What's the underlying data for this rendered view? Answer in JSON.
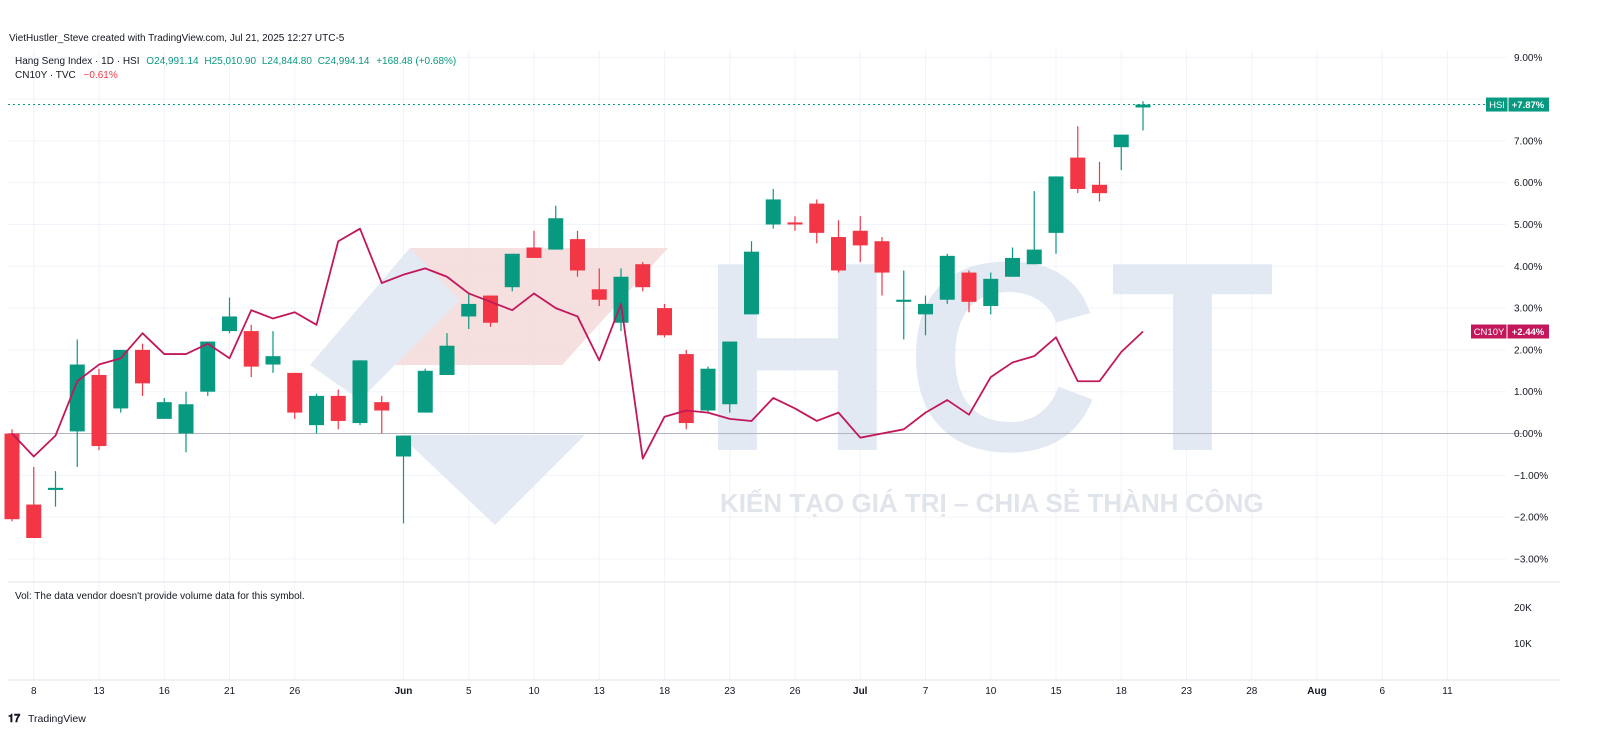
{
  "header": {
    "attribution": "VietHustler_Steve created with TradingView.com, Jul 21, 2025 12:27 UTC-5"
  },
  "legend": {
    "hsi_name": "Hang Seng Index · 1D · HSI",
    "hsi_o": "O24,991.14",
    "hsi_h": "H25,010.90",
    "hsi_l": "L24,844.80",
    "hsi_c": "C24,994.14",
    "hsi_change": "+168.48 (+0.68%)",
    "cn10y_name": "CN10Y · TVC",
    "cn10y_change": "−0.61%"
  },
  "watermark": {
    "letters": "HCT",
    "slogan": "KIẾN TẠO GIÁ TRỊ – CHIA SẺ THÀNH CÔNG"
  },
  "volume_pane": {
    "message": "Vol: The data vendor doesn't provide volume data for this symbol.",
    "y_ticks": [
      "20K",
      "10K"
    ]
  },
  "footer": {
    "brand": "TradingView"
  },
  "colors": {
    "up": "#089981",
    "down": "#f23645",
    "cn10y_line": "#c2185b",
    "grid": "#f0f3fa",
    "watermark": "#dbe4ef",
    "watermark_red": "#f3d6d6"
  },
  "chart_data": {
    "type": "candlestick",
    "y_unit": "percent change",
    "ylim": [
      -3.5,
      9.2
    ],
    "y_ticks": [
      9,
      7,
      6,
      5,
      4,
      3,
      2,
      1,
      0,
      -1,
      -2,
      -3
    ],
    "y_tick_labels": [
      "9.00%",
      "7.00%",
      "6.00%",
      "5.00%",
      "4.00%",
      "3.00%",
      "2.00%",
      "1.00%",
      "0.00%",
      "−1.00%",
      "−2.00%",
      "−3.00%"
    ],
    "x_tick_labels": [
      {
        "label": "8",
        "bar": 1
      },
      {
        "label": "13",
        "bar": 4
      },
      {
        "label": "16",
        "bar": 7
      },
      {
        "label": "21",
        "bar": 10
      },
      {
        "label": "26",
        "bar": 13
      },
      {
        "label": "Jun",
        "bar": 18
      },
      {
        "label": "5",
        "bar": 21
      },
      {
        "label": "10",
        "bar": 24
      },
      {
        "label": "13",
        "bar": 27
      },
      {
        "label": "18",
        "bar": 30
      },
      {
        "label": "23",
        "bar": 33
      },
      {
        "label": "26",
        "bar": 36
      },
      {
        "label": "Jul",
        "bar": 39
      },
      {
        "label": "7",
        "bar": 42
      },
      {
        "label": "10",
        "bar": 45
      },
      {
        "label": "15",
        "bar": 48
      },
      {
        "label": "18",
        "bar": 51
      },
      {
        "label": "23",
        "bar": 54
      },
      {
        "label": "28",
        "bar": 57
      },
      {
        "label": "Aug",
        "bar": 60
      },
      {
        "label": "6",
        "bar": 63
      },
      {
        "label": "11",
        "bar": 66
      }
    ],
    "series": [
      {
        "name": "Hang Seng Index · 1D · HSI",
        "kind": "candles",
        "last_label": "HSI",
        "last_value": "+7.87%",
        "last": 7.87,
        "ohlc": [
          [
            0.0,
            0.1,
            -2.1,
            -2.05
          ],
          [
            -1.7,
            -0.8,
            -2.5,
            -2.5
          ],
          [
            -1.35,
            -0.9,
            -1.75,
            -1.3
          ],
          [
            0.05,
            2.25,
            -0.8,
            1.65
          ],
          [
            1.4,
            1.55,
            -0.4,
            -0.3
          ],
          [
            0.6,
            2.0,
            0.5,
            2.0
          ],
          [
            2.0,
            2.15,
            0.9,
            1.2
          ],
          [
            0.35,
            0.85,
            0.35,
            0.75
          ],
          [
            0.0,
            1.0,
            -0.45,
            0.7
          ],
          [
            1.0,
            2.2,
            0.9,
            2.2
          ],
          [
            2.45,
            3.25,
            2.4,
            2.8
          ],
          [
            2.45,
            2.6,
            1.35,
            1.6
          ],
          [
            1.65,
            2.45,
            1.45,
            1.85
          ],
          [
            1.45,
            1.45,
            0.35,
            0.5
          ],
          [
            0.2,
            0.95,
            0.0,
            0.9
          ],
          [
            0.9,
            1.05,
            0.1,
            0.3
          ],
          [
            0.25,
            1.75,
            0.2,
            1.75
          ],
          [
            0.75,
            0.9,
            0.0,
            0.55
          ],
          [
            -0.55,
            -0.05,
            -2.15,
            -0.05
          ],
          [
            0.5,
            1.55,
            0.5,
            1.5
          ],
          [
            1.4,
            2.4,
            1.4,
            2.1
          ],
          [
            2.8,
            3.35,
            2.5,
            3.1
          ],
          [
            3.3,
            3.3,
            2.55,
            2.65
          ],
          [
            3.5,
            4.3,
            3.4,
            4.3
          ],
          [
            4.45,
            4.85,
            4.2,
            4.2
          ],
          [
            4.4,
            5.45,
            4.4,
            5.15
          ],
          [
            4.65,
            4.85,
            3.75,
            3.9
          ],
          [
            3.45,
            3.95,
            3.05,
            3.2
          ],
          [
            2.65,
            3.95,
            2.45,
            3.75
          ],
          [
            4.05,
            4.1,
            3.4,
            3.5
          ],
          [
            3.0,
            3.1,
            2.3,
            2.35
          ],
          [
            1.9,
            2.0,
            0.1,
            0.25
          ],
          [
            0.55,
            1.6,
            0.5,
            1.55
          ],
          [
            0.7,
            2.2,
            0.5,
            2.2
          ],
          [
            2.85,
            4.6,
            2.85,
            4.35
          ],
          [
            5.0,
            5.85,
            4.9,
            5.6
          ],
          [
            5.05,
            5.2,
            4.85,
            5.0
          ],
          [
            5.5,
            5.6,
            4.55,
            4.8
          ],
          [
            4.7,
            5.1,
            3.85,
            3.9
          ],
          [
            4.85,
            5.2,
            4.1,
            4.5
          ],
          [
            4.6,
            4.7,
            3.3,
            3.85
          ],
          [
            3.15,
            3.9,
            2.25,
            3.2
          ],
          [
            2.85,
            3.3,
            2.35,
            3.1
          ],
          [
            3.2,
            4.3,
            3.1,
            4.25
          ],
          [
            3.85,
            3.9,
            2.9,
            3.15
          ],
          [
            3.05,
            3.85,
            2.85,
            3.7
          ],
          [
            3.75,
            4.45,
            3.75,
            4.2
          ],
          [
            4.05,
            5.8,
            4.05,
            4.4
          ],
          [
            4.8,
            6.15,
            4.3,
            6.15
          ],
          [
            6.6,
            7.35,
            5.75,
            5.85
          ],
          [
            5.95,
            6.5,
            5.55,
            5.75
          ],
          [
            6.85,
            7.15,
            6.3,
            7.15
          ],
          [
            7.8,
            7.95,
            7.25,
            7.87
          ]
        ]
      },
      {
        "name": "CN10Y · TVC",
        "kind": "line",
        "last_label": "CN10Y",
        "last_value": "+2.44%",
        "last": 2.44,
        "values": [
          0.0,
          -0.55,
          -0.05,
          1.25,
          1.65,
          1.8,
          2.4,
          1.9,
          1.9,
          2.15,
          1.8,
          2.95,
          2.75,
          2.9,
          2.6,
          4.6,
          4.9,
          3.6,
          3.8,
          3.95,
          3.75,
          3.35,
          3.15,
          2.95,
          3.35,
          3.0,
          2.8,
          1.75,
          3.1,
          -0.6,
          0.4,
          0.55,
          0.5,
          0.35,
          0.3,
          0.85,
          0.6,
          0.3,
          0.5,
          -0.1,
          0.0,
          0.1,
          0.5,
          0.8,
          0.45,
          1.35,
          1.7,
          1.85,
          2.3,
          1.25,
          1.25,
          1.95,
          2.44
        ]
      }
    ]
  }
}
